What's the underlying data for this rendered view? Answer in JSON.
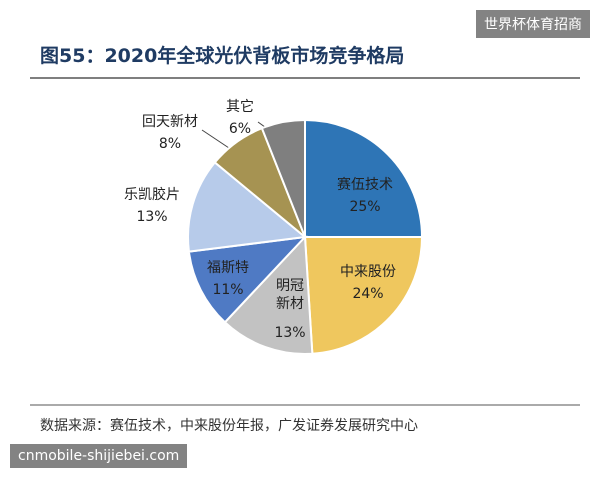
{
  "chart_data": {
    "type": "pie",
    "title": "图55：2020年全球光伏背板市场竞争格局",
    "categories": [
      "赛伍技术",
      "中来股份",
      "明冠新材",
      "福斯特",
      "乐凯胶片",
      "回天新材",
      "其它"
    ],
    "values": [
      25,
      24,
      13,
      11,
      13,
      8,
      6
    ],
    "value_labels": [
      "25%",
      "24%",
      "13%",
      "11%",
      "13%",
      "8%",
      "6%"
    ],
    "colors": [
      "#2e75b6",
      "#efc75e",
      "#c2c2c2",
      "#4f7ac4",
      "#b7cbea",
      "#a69352",
      "#7f7f7f"
    ],
    "source": "数据来源：赛伍技术，中来股份年报，广发证券发展研究中心"
  },
  "watermarks": [
    "世界杯体育招商",
    "cnmobile-shijiebei.com"
  ]
}
